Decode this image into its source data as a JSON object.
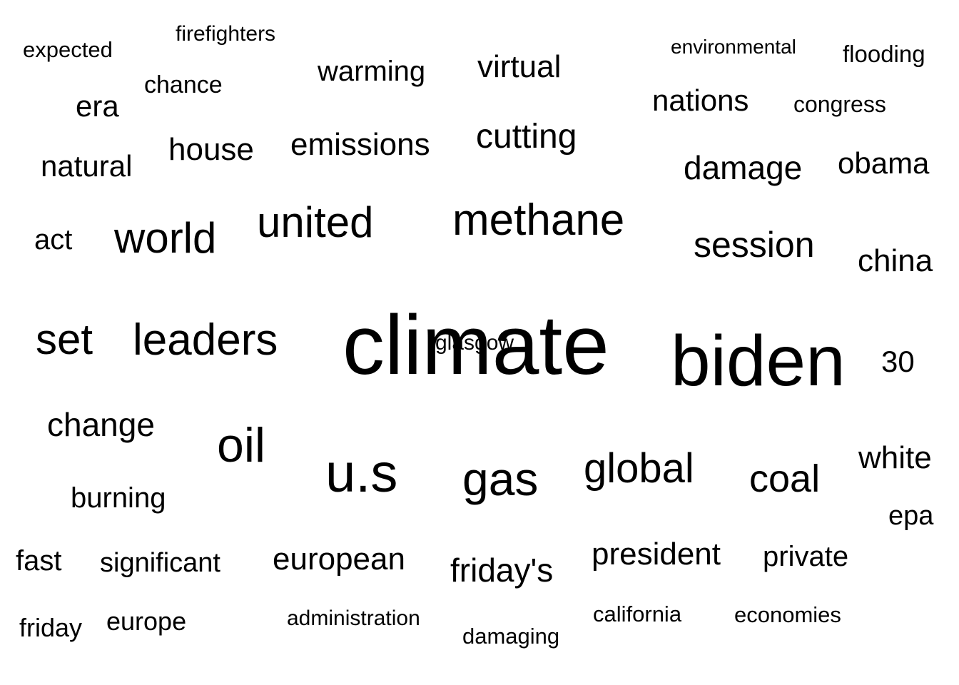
{
  "word_cloud": {
    "text_color": "#000000",
    "background_color": "#ffffff",
    "words": [
      "climate",
      "biden",
      "methane",
      "united",
      "u.s",
      "gas",
      "oil",
      "global",
      "leaders",
      "world",
      "set",
      "session",
      "coal",
      "white",
      "change",
      "china",
      "30",
      "cutting",
      "damage",
      "nations",
      "obama",
      "emissions",
      "house",
      "virtual",
      "warming",
      "natural",
      "era",
      "european",
      "president",
      "friday's",
      "private",
      "burning",
      "significant",
      "fast",
      "friday",
      "europe",
      "epa",
      "act",
      "chance",
      "flooding",
      "expected",
      "firefighters",
      "environmental",
      "congress",
      "administration",
      "damaging",
      "california",
      "economies",
      "glasgow"
    ]
  }
}
